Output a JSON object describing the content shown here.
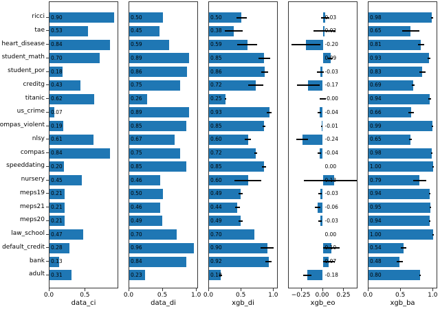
{
  "figure": {
    "bar_color": "#1f77b4",
    "error_bar_color": "#000000",
    "spine_color": "#333333"
  },
  "categories": [
    "ricci",
    "tae",
    "heart_disease",
    "student_math",
    "student_por",
    "creditg",
    "titanic",
    "us_crime",
    "compas_violent",
    "nlsy",
    "compas",
    "speeddating",
    "nursery",
    "meps19",
    "meps21",
    "meps20",
    "law_school",
    "default_credit",
    "bank",
    "adult"
  ],
  "chart_data": [
    {
      "type": "bar",
      "orientation": "horizontal",
      "xlabel": "data_ci",
      "xlim": [
        0,
        0.945
      ],
      "ticks": [
        {
          "label": "0.0",
          "v": 0
        },
        {
          "label": "0.5",
          "v": 0.5
        }
      ],
      "values": [
        "0.90",
        "0.53",
        "0.84",
        "0.70",
        "0.18",
        "0.43",
        "0.62",
        "0.07",
        "0.19",
        "0.61",
        "0.84",
        "0.20",
        "0.45",
        "0.21",
        "0.21",
        "0.21",
        "0.47",
        "0.28",
        "0.13",
        "0.31"
      ],
      "errors": null,
      "label_at_zero": false
    },
    {
      "type": "bar",
      "orientation": "horizontal",
      "xlabel": "data_di",
      "xlim": [
        0,
        1.008
      ],
      "ticks": [
        {
          "label": "0.0",
          "v": 0
        },
        {
          "label": "0.5",
          "v": 0.5
        },
        {
          "label": "1.0",
          "v": 1.0
        }
      ],
      "values": [
        "0.50",
        "0.45",
        "0.59",
        "0.89",
        "0.86",
        "0.75",
        "0.26",
        "0.89",
        "0.85",
        "0.67",
        "0.75",
        "0.85",
        "0.46",
        "0.50",
        "0.46",
        "0.49",
        "0.70",
        "0.96",
        "0.84",
        "0.23"
      ],
      "errors": null,
      "label_at_zero": false
    },
    {
      "type": "bar",
      "orientation": "horizontal",
      "xlabel": "xgb_di",
      "xlim": [
        0,
        1.05
      ],
      "ticks": [
        {
          "label": "0.0",
          "v": 0
        },
        {
          "label": "0.5",
          "v": 0.5
        },
        {
          "label": "1.0",
          "v": 1.0
        }
      ],
      "values": [
        "0.50",
        "0.38",
        "0.59",
        "0.85",
        "0.86",
        "0.72",
        "0.25",
        "0.93",
        "0.85",
        "0.60",
        "0.72",
        "0.85",
        "0.60",
        "0.49",
        "0.44",
        "0.49",
        "0.70",
        "0.90",
        "0.92",
        "0.18"
      ],
      "errors": [
        0.08,
        0.14,
        0.15,
        0.09,
        0.05,
        0.12,
        0.01,
        0.04,
        0.02,
        0.05,
        0.02,
        0.03,
        0.21,
        0.03,
        0.04,
        0.03,
        0,
        0.1,
        0.05,
        0.02
      ],
      "label_at_zero": false
    },
    {
      "type": "bar",
      "orientation": "horizontal",
      "xlabel": "xgb_eo",
      "xlim": [
        -0.4,
        0.4
      ],
      "ticks": [
        {
          "label": "−0.25",
          "v": -0.25
        },
        {
          "label": "0.00",
          "v": 0
        },
        {
          "label": "0.25",
          "v": 0.25
        }
      ],
      "values": [
        "0.03",
        "0.02",
        "-0.20",
        "0.09",
        "-0.03",
        "-0.17",
        "-0.00",
        "-0.04",
        "-0.01",
        "-0.24",
        "-0.04",
        "0.00",
        "0.13",
        "-0.03",
        "-0.06",
        "-0.03",
        "0.00",
        "0.10",
        "0.07",
        "-0.18"
      ],
      "errors": [
        0.05,
        0.13,
        0.17,
        0.03,
        0.04,
        0.13,
        0.04,
        0.02,
        0.01,
        0.07,
        0.02,
        0,
        0.35,
        0.02,
        0.03,
        0.02,
        0,
        0.1,
        0.07,
        0.05
      ],
      "label_at_zero": true
    },
    {
      "type": "bar",
      "orientation": "horizontal",
      "xlabel": "xgb_ba",
      "xlim": [
        0,
        1.05
      ],
      "ticks": [
        {
          "label": "0.0",
          "v": 0
        },
        {
          "label": "0.5",
          "v": 0.5
        },
        {
          "label": "1.0",
          "v": 1.0
        }
      ],
      "values": [
        "0.98",
        "0.65",
        "0.81",
        "0.93",
        "0.83",
        "0.69",
        "0.94",
        "0.66",
        "0.99",
        "0.65",
        "0.98",
        "1.00",
        "0.79",
        "0.94",
        "0.95",
        "0.94",
        "1.00",
        "0.54",
        "0.48",
        "0.80"
      ],
      "errors": [
        0.02,
        0.13,
        0.05,
        0.02,
        0.05,
        0.02,
        0.02,
        0.04,
        0.01,
        0.02,
        0.01,
        0.01,
        0.1,
        0.01,
        0.01,
        0.01,
        0.01,
        0.04,
        0.05,
        0.01
      ],
      "label_at_zero": false
    }
  ]
}
